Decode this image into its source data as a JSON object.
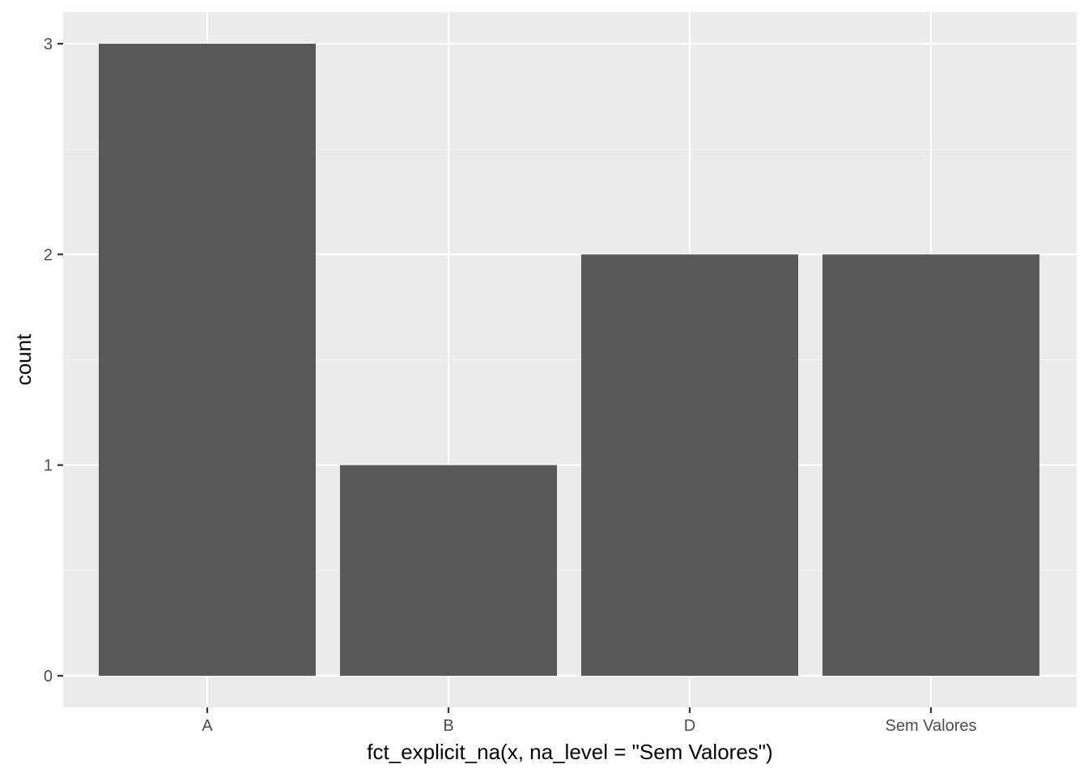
{
  "chart_data": {
    "type": "bar",
    "categories": [
      "A",
      "B",
      "D",
      "Sem Valores"
    ],
    "values": [
      3,
      1,
      2,
      2
    ],
    "xlabel": "fct_explicit_na(x, na_level = \"Sem Valores\")",
    "ylabel": "count",
    "ylim": [
      0,
      3
    ],
    "yticks": [
      0,
      1,
      2,
      3
    ],
    "grid": true,
    "legend": "none"
  },
  "colors": {
    "panel_background": "#ebebeb",
    "grid_major": "#ffffff",
    "grid_minor": "#f5f5f5",
    "bar_fill": "#595959",
    "tick_text": "#4d4d4d",
    "tick_mark": "#333333",
    "axis_title": "#000000"
  }
}
